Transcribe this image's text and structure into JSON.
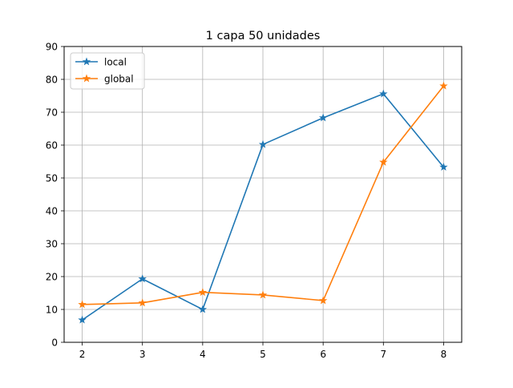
{
  "chart_data": {
    "type": "line",
    "title": "1 capa 50 unidades",
    "xlabel": "",
    "ylabel": "",
    "x": [
      2,
      3,
      4,
      5,
      6,
      7,
      8
    ],
    "xticks": [
      "2",
      "3",
      "4",
      "5",
      "6",
      "7",
      "8"
    ],
    "xlim": [
      1.7,
      8.3
    ],
    "yticks": [
      "0",
      "10",
      "20",
      "30",
      "40",
      "50",
      "60",
      "70",
      "80",
      "90"
    ],
    "ylim": [
      0,
      90
    ],
    "grid": true,
    "legend_position": "upper-left",
    "marker": "star",
    "series": [
      {
        "name": "local",
        "color": "#1f77b4",
        "values": [
          6.8,
          19.3,
          10.0,
          60.2,
          68.3,
          75.6,
          53.3
        ]
      },
      {
        "name": "global",
        "color": "#ff7f0e",
        "values": [
          11.5,
          12.0,
          15.2,
          14.4,
          12.7,
          54.8,
          78.0
        ]
      }
    ]
  }
}
